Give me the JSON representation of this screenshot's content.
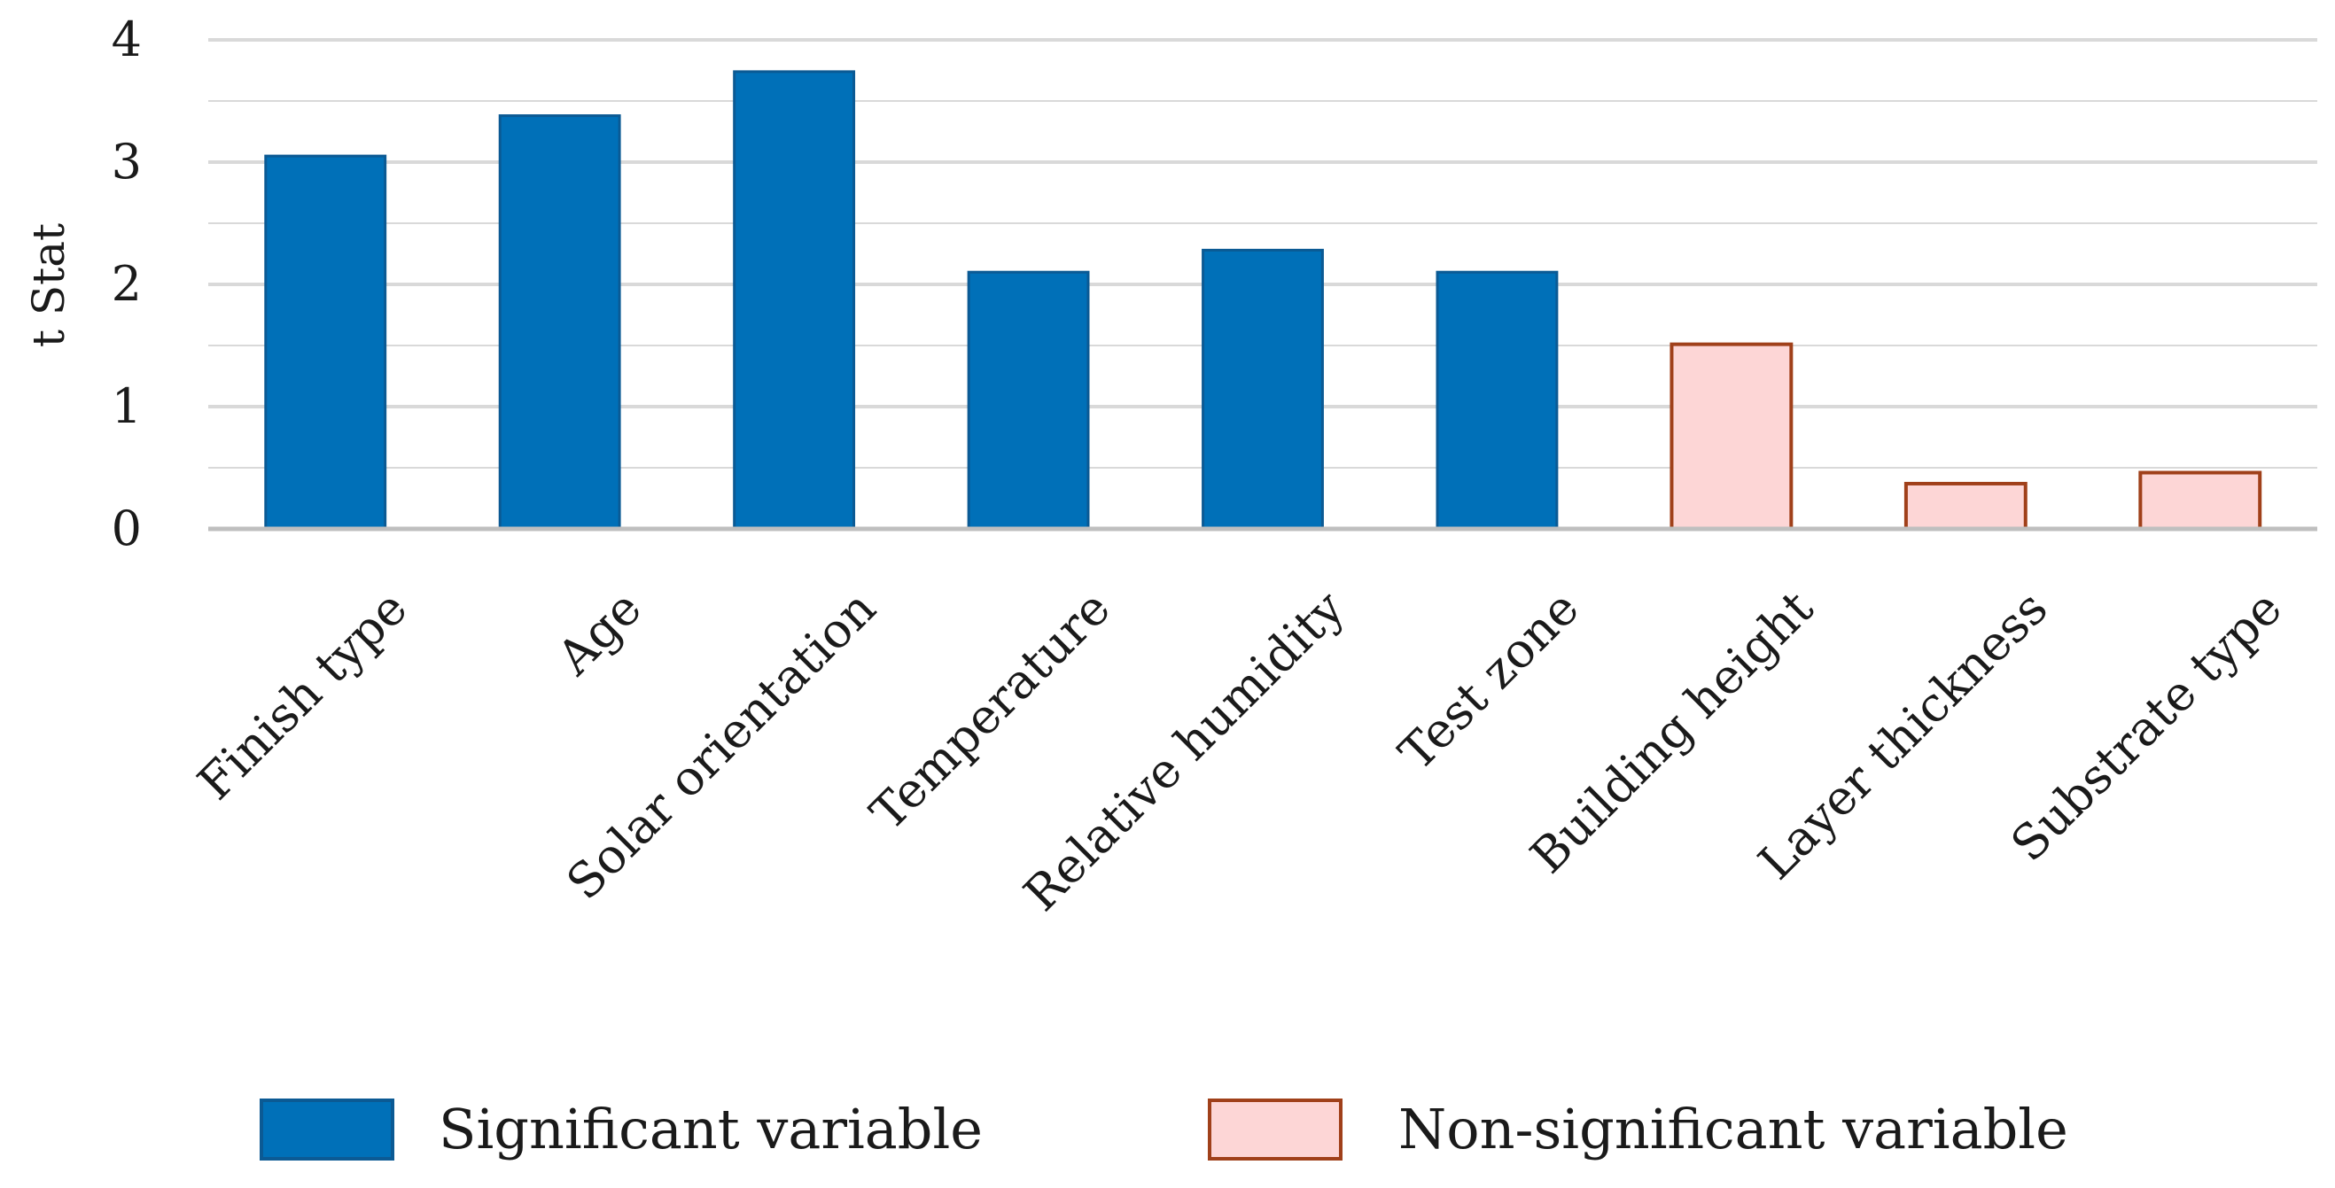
{
  "chart_data": {
    "type": "bar",
    "title": "",
    "xlabel": "",
    "ylabel": "t Stat",
    "ylim": [
      0,
      4
    ],
    "yticks": [
      0,
      1,
      2,
      3,
      4
    ],
    "grid": true,
    "legend_position": "bottom",
    "categories": [
      "Finish type",
      "Age",
      "Solar orientation",
      "Temperature",
      "Relative humidity",
      "Test zone",
      "Building height",
      "Layer thickness",
      "Substrate type"
    ],
    "values": [
      3.05,
      3.38,
      3.74,
      2.1,
      2.28,
      2.1,
      1.51,
      0.37,
      0.46
    ],
    "significant": [
      true,
      true,
      true,
      true,
      true,
      true,
      false,
      false,
      false
    ],
    "legend": [
      {
        "label": "Significant variable",
        "fill": "#0070b8",
        "stroke": "#0b5a94"
      },
      {
        "label": "Non-significant variable",
        "fill": "#fdd6d6",
        "stroke": "#a0401a"
      }
    ],
    "colors": {
      "significant_fill": "#0070b8",
      "significant_stroke": "#0b5a94",
      "nonsignificant_fill": "#fdd6d6",
      "nonsignificant_stroke": "#a0401a",
      "grid": "#d9d9d9",
      "axis": "#bfbfbf"
    }
  }
}
